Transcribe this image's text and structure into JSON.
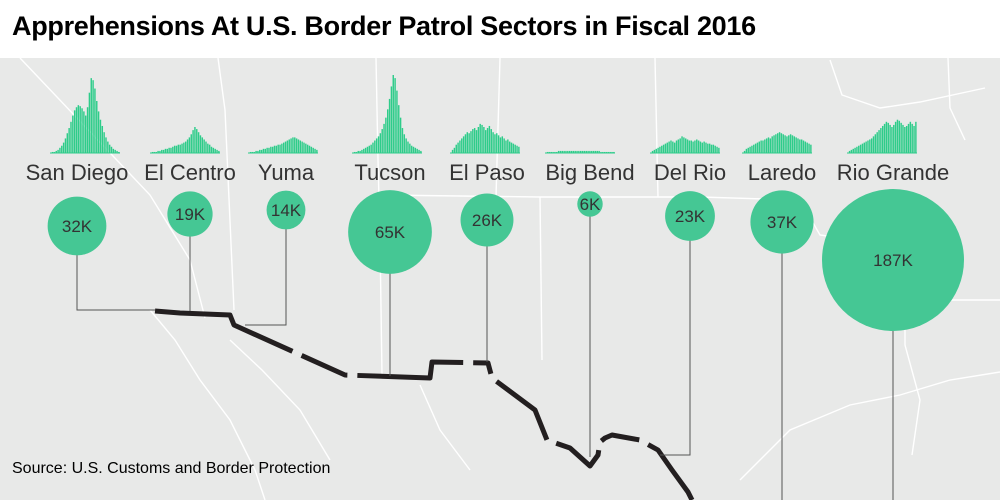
{
  "title": "Apprehensions At U.S. Border Patrol Sectors in Fiscal 2016",
  "source": "Source: U.S. Customs and Border Protection",
  "colors": {
    "bubble": "#45c794",
    "histogram": "#2ecc8a",
    "land": "#e8e9e8",
    "state_lines": "#ffffff",
    "border": "#231f20",
    "leader": "#555555",
    "label": "#333333",
    "title": "#000000"
  },
  "chart_data": {
    "type": "bubble",
    "title": "Apprehensions At U.S. Border Patrol Sectors in Fiscal 2016",
    "unit": "apprehensions",
    "grid": false,
    "legend": "none",
    "sectors": [
      {
        "name": "San Diego",
        "value": 32000,
        "label": "32K",
        "daily": [
          0,
          1,
          1,
          2,
          3,
          5,
          7,
          10,
          14,
          19,
          24,
          30,
          36,
          41,
          44,
          46,
          45,
          43,
          40,
          36,
          44,
          58,
          72,
          70,
          62,
          50,
          40,
          32,
          26,
          20,
          15,
          11,
          8,
          6,
          4,
          3,
          2,
          1
        ]
      },
      {
        "name": "El Centro",
        "value": 19000,
        "label": "19K",
        "daily": [
          0,
          1,
          1,
          1,
          2,
          2,
          3,
          3,
          4,
          4,
          5,
          5,
          6,
          7,
          7,
          8,
          8,
          9,
          10,
          11,
          13,
          15,
          18,
          22,
          25,
          23,
          20,
          17,
          15,
          13,
          11,
          9,
          8,
          6,
          5,
          4,
          3,
          2
        ]
      },
      {
        "name": "Yuma",
        "value": 14000,
        "label": "14K",
        "daily": [
          0,
          1,
          1,
          1,
          2,
          2,
          3,
          3,
          4,
          4,
          5,
          5,
          6,
          6,
          7,
          7,
          8,
          8,
          9,
          10,
          11,
          12,
          13,
          14,
          15,
          15,
          14,
          13,
          12,
          11,
          10,
          9,
          8,
          7,
          6,
          5,
          4,
          3
        ]
      },
      {
        "name": "Tucson",
        "value": 65000,
        "label": "65K",
        "daily": [
          0,
          1,
          1,
          2,
          2,
          3,
          4,
          5,
          6,
          7,
          8,
          10,
          12,
          14,
          16,
          19,
          23,
          28,
          34,
          42,
          52,
          64,
          75,
          72,
          60,
          46,
          34,
          24,
          18,
          14,
          11,
          9,
          7,
          6,
          5,
          4,
          3,
          2
        ]
      },
      {
        "name": "El Paso",
        "value": 26000,
        "label": "26K",
        "daily": [
          0,
          3,
          5,
          8,
          10,
          12,
          14,
          16,
          18,
          20,
          19,
          21,
          23,
          24,
          22,
          25,
          28,
          27,
          25,
          22,
          24,
          26,
          23,
          20,
          18,
          19,
          17,
          15,
          16,
          14,
          12,
          13,
          11,
          10,
          9,
          8,
          7,
          6
        ]
      },
      {
        "name": "Big Bend",
        "value": 6000,
        "label": "6K",
        "daily": [
          0,
          1,
          1,
          1,
          1,
          1,
          1,
          2,
          2,
          2,
          2,
          2,
          2,
          2,
          2,
          2,
          2,
          2,
          2,
          2,
          2,
          2,
          2,
          2,
          2,
          2,
          2,
          2,
          2,
          2,
          1,
          1,
          1,
          1,
          1,
          1,
          1,
          1
        ]
      },
      {
        "name": "Del Rio",
        "value": 23000,
        "label": "23K",
        "daily": [
          0,
          2,
          3,
          4,
          5,
          6,
          7,
          8,
          9,
          10,
          11,
          12,
          11,
          10,
          12,
          13,
          14,
          16,
          15,
          14,
          13,
          12,
          12,
          11,
          12,
          13,
          12,
          11,
          10,
          11,
          10,
          9,
          9,
          8,
          8,
          7,
          6,
          5
        ]
      },
      {
        "name": "Laredo",
        "value": 37000,
        "label": "37K",
        "daily": [
          0,
          2,
          4,
          5,
          6,
          7,
          8,
          9,
          10,
          11,
          12,
          12,
          13,
          14,
          15,
          14,
          16,
          17,
          18,
          19,
          20,
          19,
          18,
          17,
          16,
          17,
          18,
          17,
          16,
          15,
          14,
          13,
          13,
          12,
          11,
          10,
          9,
          8
        ]
      },
      {
        "name": "Rio Grande",
        "value": 187000,
        "label": "187K",
        "daily": [
          0,
          2,
          3,
          4,
          5,
          6,
          7,
          8,
          9,
          10,
          11,
          12,
          13,
          14,
          16,
          18,
          20,
          22,
          24,
          26,
          28,
          30,
          29,
          27,
          25,
          27,
          30,
          32,
          31,
          29,
          27,
          25,
          26,
          28,
          30,
          28,
          26,
          30
        ]
      }
    ]
  }
}
